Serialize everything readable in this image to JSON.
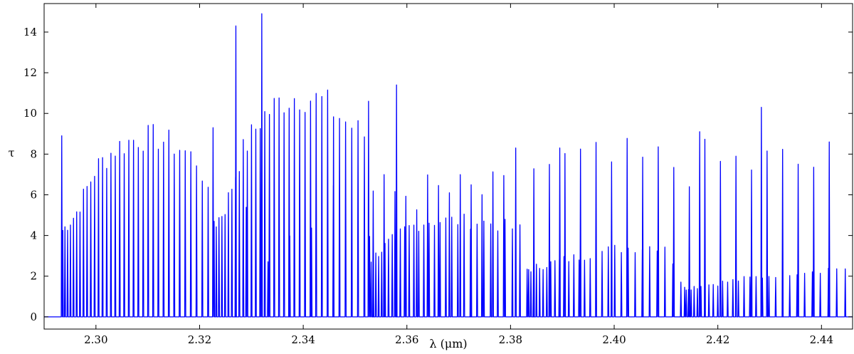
{
  "chart_data": {
    "type": "line",
    "title": "",
    "xlabel": "λ (μm)",
    "ylabel": "τ",
    "xlim": [
      2.29,
      2.446
    ],
    "ylim": [
      -0.6,
      15.4
    ],
    "grid": false,
    "line_color": "#0000ff",
    "xticks": [
      2.3,
      2.32,
      2.34,
      2.36,
      2.38,
      2.4,
      2.42,
      2.44
    ],
    "xtick_labels": [
      "2.30",
      "2.32",
      "2.34",
      "2.36",
      "2.38",
      "2.40",
      "2.42",
      "2.44"
    ],
    "yticks": [
      0,
      2,
      4,
      6,
      8,
      10,
      12,
      14
    ],
    "ytick_labels": [
      "0",
      "2",
      "4",
      "6",
      "8",
      "10",
      "12",
      "14"
    ],
    "series": [
      {
        "band_heads": [
          {
            "x": 2.2934,
            "y": 8.9
          },
          {
            "x": 2.3226,
            "y": 9.3
          },
          {
            "x": 2.327,
            "y": 14.3
          },
          {
            "x": 2.332,
            "y": 14.9
          },
          {
            "x": 2.3526,
            "y": 10.6
          },
          {
            "x": 2.358,
            "y": 11.4
          },
          {
            "x": 2.381,
            "y": 8.3
          },
          {
            "x": 2.3895,
            "y": 8.3
          },
          {
            "x": 2.4165,
            "y": 9.1
          },
          {
            "x": 2.4284,
            "y": 10.3
          },
          {
            "x": 2.4415,
            "y": 8.6
          }
        ],
        "envelope": [
          {
            "x": 2.2936,
            "y": 4.6
          },
          {
            "x": 2.296,
            "y": 5.4
          },
          {
            "x": 2.3,
            "y": 7.9
          },
          {
            "x": 2.304,
            "y": 9.0
          },
          {
            "x": 2.308,
            "y": 9.5
          },
          {
            "x": 2.312,
            "y": 9.5
          },
          {
            "x": 2.316,
            "y": 9.0
          },
          {
            "x": 2.32,
            "y": 8.2
          },
          {
            "x": 2.323,
            "y": 4.9
          },
          {
            "x": 2.325,
            "y": 5.8
          },
          {
            "x": 2.328,
            "y": 8.6
          },
          {
            "x": 2.332,
            "y": 10.6
          },
          {
            "x": 2.336,
            "y": 11.5
          },
          {
            "x": 2.3395,
            "y": 11.8
          },
          {
            "x": 2.344,
            "y": 11.4
          },
          {
            "x": 2.348,
            "y": 10.4
          },
          {
            "x": 2.352,
            "y": 9.6
          },
          {
            "x": 2.353,
            "y": 3.0
          },
          {
            "x": 2.356,
            "y": 3.8
          },
          {
            "x": 2.36,
            "y": 4.7
          },
          {
            "x": 2.364,
            "y": 5.1
          },
          {
            "x": 2.37,
            "y": 5.1
          },
          {
            "x": 2.376,
            "y": 5.0
          },
          {
            "x": 2.382,
            "y": 4.6
          },
          {
            "x": 2.3832,
            "y": 2.5
          },
          {
            "x": 2.39,
            "y": 3.0
          },
          {
            "x": 2.4,
            "y": 3.6
          },
          {
            "x": 2.41,
            "y": 3.8
          },
          {
            "x": 2.4135,
            "y": 1.5
          },
          {
            "x": 2.425,
            "y": 2.0
          },
          {
            "x": 2.435,
            "y": 2.4
          },
          {
            "x": 2.444,
            "y": 2.6
          }
        ]
      }
    ]
  }
}
